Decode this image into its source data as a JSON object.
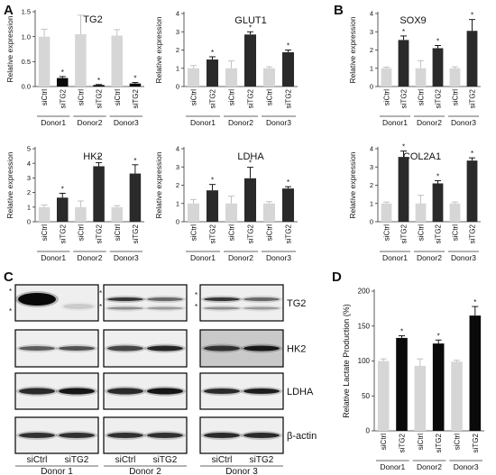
{
  "panels": {
    "A": "A",
    "B": "B",
    "C": "C",
    "D": "D"
  },
  "chart_data": [
    {
      "id": "tg2",
      "type": "bar",
      "title": "TG2",
      "ylabel": "Relative expression",
      "ylim": [
        0,
        1.5
      ],
      "yticks": [
        0.0,
        0.5,
        1.0,
        1.5
      ],
      "ytick_labels": [
        "0.0",
        "0.5",
        "1.0",
        "1.5"
      ],
      "categories": [
        "siCtrl",
        "siTG2",
        "siCtrl",
        "siTG2",
        "siCtrl",
        "siTG2"
      ],
      "groups": [
        "Donor1",
        "Donor2",
        "Donor3"
      ],
      "values": [
        1.0,
        0.17,
        1.05,
        0.03,
        1.02,
        0.06
      ],
      "errors": [
        0.15,
        0.03,
        0.38,
        0.01,
        0.12,
        0.02
      ],
      "sig": [
        false,
        true,
        false,
        true,
        false,
        true
      ]
    },
    {
      "id": "glut1",
      "type": "bar",
      "title": "GLUT1",
      "ylabel": "Relative expression",
      "ylim": [
        0,
        4
      ],
      "yticks": [
        0,
        1,
        2,
        3,
        4
      ],
      "ytick_labels": [
        "0",
        "1",
        "2",
        "3",
        "4"
      ],
      "categories": [
        "siCtrl",
        "siTG2",
        "siCtrl",
        "siTG2",
        "siCtrl",
        "siTG2"
      ],
      "groups": [
        "Donor1",
        "Donor2",
        "Donor3"
      ],
      "values": [
        1.0,
        1.48,
        1.0,
        2.85,
        1.0,
        1.88
      ],
      "errors": [
        0.15,
        0.15,
        0.4,
        0.15,
        0.08,
        0.12
      ],
      "sig": [
        false,
        true,
        false,
        true,
        false,
        true
      ]
    },
    {
      "id": "sox9",
      "type": "bar",
      "title": "SOX9",
      "ylabel": "Relative expression",
      "ylim": [
        0,
        4
      ],
      "yticks": [
        0,
        1,
        2,
        3,
        4
      ],
      "ytick_labels": [
        "0",
        "1",
        "2",
        "3",
        "4"
      ],
      "categories": [
        "siCtrl",
        "siTG2",
        "siCtrl",
        "siTG2",
        "siCtrl",
        "siTG2"
      ],
      "groups": [
        "Donor1",
        "Donor2",
        "Donor3"
      ],
      "values": [
        1.0,
        2.55,
        1.0,
        2.1,
        1.0,
        3.05
      ],
      "errors": [
        0.06,
        0.22,
        0.42,
        0.15,
        0.08,
        0.62
      ],
      "sig": [
        false,
        true,
        false,
        true,
        false,
        true
      ]
    },
    {
      "id": "hk2",
      "type": "bar",
      "title": "HK2",
      "ylabel": "Relative expression",
      "ylim": [
        0,
        5
      ],
      "yticks": [
        0,
        1,
        2,
        3,
        4,
        5
      ],
      "ytick_labels": [
        "0",
        "1",
        "2",
        "3",
        "4",
        "5"
      ],
      "categories": [
        "siCtrl",
        "siTG2",
        "siCtrl",
        "siTG2",
        "siCtrl",
        "siTG2"
      ],
      "groups": [
        "Donor1",
        "Donor2",
        "Donor3"
      ],
      "values": [
        1.0,
        1.65,
        1.0,
        3.8,
        1.0,
        3.3
      ],
      "errors": [
        0.15,
        0.3,
        0.42,
        0.25,
        0.1,
        0.6
      ],
      "sig": [
        false,
        true,
        false,
        true,
        false,
        true
      ]
    },
    {
      "id": "ldha",
      "type": "bar",
      "title": "LDHA",
      "ylabel": "Relative expression",
      "ylim": [
        0,
        4
      ],
      "yticks": [
        0,
        1,
        2,
        3,
        4
      ],
      "ytick_labels": [
        "0",
        "1",
        "2",
        "3",
        "4"
      ],
      "categories": [
        "siCtrl",
        "siTG2",
        "siCtrl",
        "siTG2",
        "siCtrl",
        "siTG2"
      ],
      "groups": [
        "Donor1",
        "Donor2",
        "Donor3"
      ],
      "values": [
        1.0,
        1.72,
        1.0,
        2.38,
        1.0,
        1.82
      ],
      "errors": [
        0.22,
        0.32,
        0.4,
        0.6,
        0.1,
        0.1
      ],
      "sig": [
        false,
        true,
        false,
        true,
        false,
        true
      ]
    },
    {
      "id": "col2a1",
      "type": "bar",
      "title": "COL2A1",
      "ylabel": "Relative expression",
      "ylim": [
        0,
        4
      ],
      "yticks": [
        0,
        1,
        2,
        3,
        4
      ],
      "ytick_labels": [
        "0",
        "1",
        "2",
        "3",
        "4"
      ],
      "categories": [
        "siCtrl",
        "siTG2",
        "siCtrl",
        "siTG2",
        "siCtrl",
        "siTG2"
      ],
      "groups": [
        "Donor1",
        "Donor2",
        "Donor3"
      ],
      "values": [
        1.0,
        3.55,
        1.0,
        2.1,
        1.0,
        3.35
      ],
      "errors": [
        0.08,
        0.32,
        0.45,
        0.15,
        0.08,
        0.15
      ],
      "sig": [
        false,
        true,
        false,
        true,
        false,
        true
      ]
    },
    {
      "id": "lactate",
      "type": "bar",
      "title": "",
      "ylabel": "Relative Lactate Production (%)",
      "ylim": [
        0,
        200
      ],
      "yticks": [
        0,
        50,
        100,
        150,
        200
      ],
      "ytick_labels": [
        "0",
        "50",
        "100",
        "150",
        "200"
      ],
      "categories": [
        "siCtrl",
        "siTG2",
        "siCtrl",
        "siTG2",
        "siCtrl",
        "siTG2"
      ],
      "groups": [
        "Donor1",
        "Donor2",
        "Donor3"
      ],
      "values": [
        100,
        133,
        93,
        125,
        99,
        165
      ],
      "errors": [
        3,
        3,
        10,
        5,
        2,
        13
      ],
      "sig": [
        false,
        true,
        false,
        true,
        false,
        true
      ]
    }
  ],
  "colors": {
    "ctrl": "#d6d6d6",
    "tg2": "#0a0a0a",
    "tg2_dark": "#2a2a2a",
    "star": "#111111"
  },
  "blot": {
    "proteins": [
      "TG2",
      "HK2",
      "LDHA",
      "β-actin"
    ],
    "lanes": [
      "siCtrl",
      "siTG2"
    ],
    "donors": [
      "Donor 1",
      "Donor 2",
      "Donor 3"
    ],
    "marker": "*"
  }
}
